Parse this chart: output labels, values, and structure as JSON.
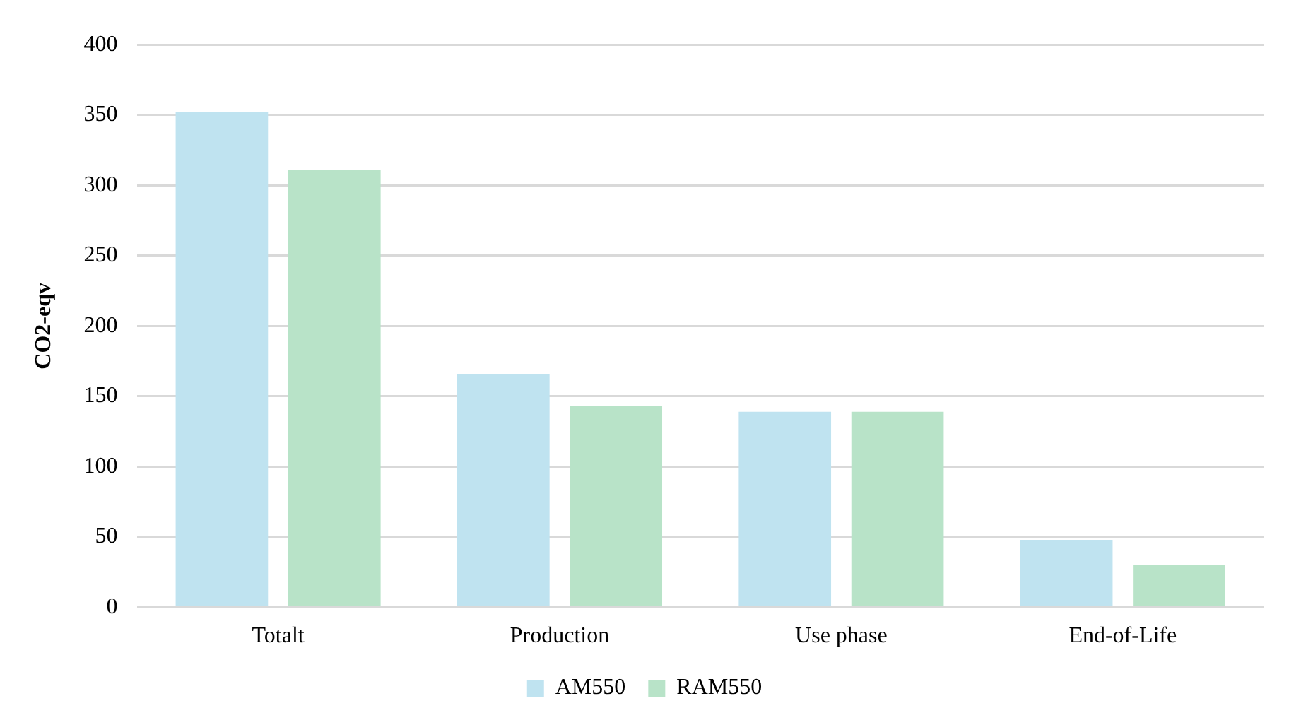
{
  "chart_data": {
    "type": "bar",
    "ylabel": "CO2-eqv",
    "categories": [
      "Totalt",
      "Production",
      "Use phase",
      "End-of-Life"
    ],
    "series": [
      {
        "name": "AM550",
        "color": "#bfe3f0",
        "values": [
          352,
          166,
          139,
          48
        ]
      },
      {
        "name": "RAM550",
        "color": "#b8e3c8",
        "values": [
          311,
          143,
          139,
          30
        ]
      }
    ],
    "ylim": [
      0,
      400
    ],
    "yticks": [
      0,
      50,
      100,
      150,
      200,
      250,
      300,
      350,
      400
    ],
    "grid": "y",
    "legend": "bottom"
  }
}
